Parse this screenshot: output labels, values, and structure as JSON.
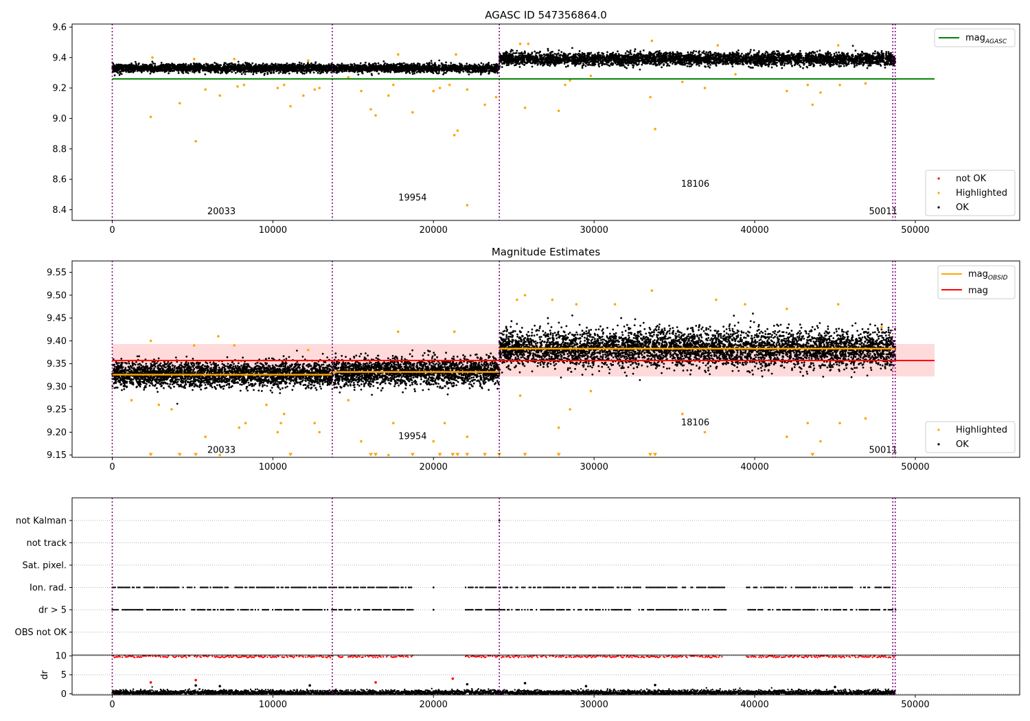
{
  "figure_title": "AGASC ID 547356864.0",
  "colors": {
    "ok": "#000000",
    "highlighted": "#ffa500",
    "not_ok": "#ff0000",
    "mag_agasc": "#008000",
    "mag_obsid": "#ffa500",
    "mag": "#ff0000",
    "band": "#ffd6d6",
    "obsid_boundary": "#800080",
    "grid": "#b0b0b0"
  },
  "chart_data": [
    {
      "type": "scatter",
      "title": "AGASC ID 547356864.0",
      "xlabel": "",
      "ylabel": "",
      "xlim": [
        -2500,
        56500
      ],
      "ylim": [
        8.33,
        9.62
      ],
      "x_ticks": [
        0,
        10000,
        20000,
        30000,
        40000,
        50000
      ],
      "y_ticks": [
        8.4,
        8.6,
        8.8,
        9.0,
        9.2,
        9.4,
        9.6
      ],
      "legends": [
        {
          "position": "top-right",
          "entries": [
            {
              "label_main": "mag",
              "label_sub": "AGASC",
              "color": "#008000",
              "kind": "line"
            }
          ]
        },
        {
          "position": "bottom-right",
          "entries": [
            {
              "label": "not OK",
              "color": "#ff0000",
              "kind": "dot"
            },
            {
              "label": "Highlighted",
              "color": "#ffa500",
              "kind": "dot"
            },
            {
              "label": "OK",
              "color": "#000000",
              "kind": "dot"
            }
          ]
        }
      ],
      "hlines": [
        {
          "name": "mag_AGASC",
          "y": 9.26,
          "x_range": [
            0,
            51200
          ],
          "color": "#008000"
        }
      ],
      "obsid_boundaries": [
        0,
        13700,
        24100,
        48600,
        48750
      ],
      "obsid_labels": [
        {
          "text": "20033",
          "x": 6800,
          "y": 8.37
        },
        {
          "text": "19954",
          "x": 18700,
          "y": 8.46
        },
        {
          "text": "18106",
          "x": 36300,
          "y": 8.55
        },
        {
          "text": "50011",
          "x": 48000,
          "y": 8.37
        }
      ],
      "series": [
        {
          "name": "OK",
          "color": "#000000",
          "segments": [
            {
              "x0": 0,
              "x1": 13700,
              "center": 9.33,
              "spread": 0.03
            },
            {
              "x0": 13700,
              "x1": 24100,
              "center": 9.33,
              "spread": 0.03
            },
            {
              "x0": 24100,
              "x1": 48750,
              "center": 9.39,
              "spread": 0.045
            }
          ]
        },
        {
          "name": "Highlighted",
          "color": "#ffa500",
          "points": [
            [
              2400,
              9.01
            ],
            [
              4200,
              9.1
            ],
            [
              5200,
              8.85
            ],
            [
              5800,
              9.19
            ],
            [
              6700,
              9.15
            ],
            [
              7800,
              9.21
            ],
            [
              8200,
              9.22
            ],
            [
              10300,
              9.2
            ],
            [
              10700,
              9.22
            ],
            [
              11100,
              9.08
            ],
            [
              11900,
              9.15
            ],
            [
              12600,
              9.19
            ],
            [
              12900,
              9.2
            ],
            [
              14700,
              9.27
            ],
            [
              15500,
              9.18
            ],
            [
              16100,
              9.06
            ],
            [
              16400,
              9.02
            ],
            [
              17200,
              9.15
            ],
            [
              17500,
              9.22
            ],
            [
              18700,
              9.04
            ],
            [
              20000,
              9.18
            ],
            [
              20400,
              9.2
            ],
            [
              21000,
              9.22
            ],
            [
              21300,
              8.89
            ],
            [
              21500,
              8.92
            ],
            [
              22100,
              8.43
            ],
            [
              22100,
              9.19
            ],
            [
              23200,
              9.09
            ],
            [
              23900,
              9.14
            ],
            [
              25700,
              9.07
            ],
            [
              27800,
              9.05
            ],
            [
              28200,
              9.22
            ],
            [
              28500,
              9.25
            ],
            [
              29800,
              9.28
            ],
            [
              33500,
              9.14
            ],
            [
              33800,
              8.93
            ],
            [
              35500,
              9.24
            ],
            [
              36900,
              9.2
            ],
            [
              38800,
              9.29
            ],
            [
              42000,
              9.18
            ],
            [
              43300,
              9.22
            ],
            [
              43600,
              9.09
            ],
            [
              44100,
              9.17
            ],
            [
              45300,
              9.22
            ],
            [
              46900,
              9.23
            ],
            [
              2500,
              9.4
            ],
            [
              5100,
              9.39
            ],
            [
              7600,
              9.39
            ],
            [
              12200,
              9.38
            ],
            [
              17800,
              9.42
            ],
            [
              21400,
              9.42
            ],
            [
              25400,
              9.49
            ],
            [
              25900,
              9.49
            ],
            [
              33600,
              9.51
            ],
            [
              37700,
              9.48
            ],
            [
              45200,
              9.48
            ]
          ]
        }
      ]
    },
    {
      "type": "scatter",
      "title": "Magnitude Estimates",
      "xlabel": "",
      "ylabel": "",
      "xlim": [
        -2500,
        56500
      ],
      "ylim": [
        9.145,
        9.575
      ],
      "x_ticks": [
        0,
        10000,
        20000,
        30000,
        40000,
        50000
      ],
      "y_ticks": [
        9.15,
        9.2,
        9.25,
        9.3,
        9.35,
        9.4,
        9.45,
        9.5,
        9.55
      ],
      "legends": [
        {
          "position": "top-right",
          "entries": [
            {
              "label_main": "mag",
              "label_sub": "OBSID",
              "color": "#ffa500",
              "kind": "line"
            },
            {
              "label": "mag",
              "color": "#ff0000",
              "kind": "line"
            }
          ]
        },
        {
          "position": "bottom-right",
          "entries": [
            {
              "label": "Highlighted",
              "color": "#ffa500",
              "kind": "dot"
            },
            {
              "label": "OK",
              "color": "#000000",
              "kind": "dot"
            }
          ]
        }
      ],
      "band": {
        "y0": 9.322,
        "y1": 9.393,
        "x_range": [
          0,
          51200
        ]
      },
      "hlines": [
        {
          "name": "mag",
          "y": 9.357,
          "x_range": [
            0,
            51200
          ],
          "color": "#ff0000"
        }
      ],
      "obsid_means": [
        {
          "x0": 0,
          "x1": 13700,
          "y": 9.326
        },
        {
          "x0": 13700,
          "x1": 24100,
          "y": 9.332
        },
        {
          "x0": 24100,
          "x1": 48750,
          "y": 9.383
        }
      ],
      "obsid_boundaries": [
        0,
        13700,
        24100,
        48600,
        48750
      ],
      "obsid_labels": [
        {
          "text": "20033",
          "x": 6800,
          "y": 9.155
        },
        {
          "text": "19954",
          "x": 18700,
          "y": 9.185
        },
        {
          "text": "18106",
          "x": 36300,
          "y": 9.215
        },
        {
          "text": "50011",
          "x": 48000,
          "y": 9.155
        }
      ],
      "series": [
        {
          "name": "OK",
          "color": "#000000",
          "segments": [
            {
              "x0": 0,
              "x1": 13700,
              "center": 9.327,
              "spread": 0.03
            },
            {
              "x0": 13700,
              "x1": 24100,
              "center": 9.332,
              "spread": 0.033
            },
            {
              "x0": 24100,
              "x1": 48750,
              "center": 9.383,
              "spread": 0.045
            }
          ]
        },
        {
          "name": "Highlighted",
          "color": "#ffa500",
          "points": [
            [
              1200,
              9.27
            ],
            [
              2900,
              9.26
            ],
            [
              3700,
              9.25
            ],
            [
              5800,
              9.19
            ],
            [
              6700,
              9.15
            ],
            [
              7900,
              9.21
            ],
            [
              8300,
              9.22
            ],
            [
              9600,
              9.26
            ],
            [
              10300,
              9.2
            ],
            [
              10700,
              9.24
            ],
            [
              10500,
              9.22
            ],
            [
              12600,
              9.22
            ],
            [
              12900,
              9.2
            ],
            [
              14700,
              9.27
            ],
            [
              15500,
              9.18
            ],
            [
              17200,
              9.15
            ],
            [
              17500,
              9.22
            ],
            [
              20000,
              9.18
            ],
            [
              20700,
              9.22
            ],
            [
              22100,
              9.19
            ],
            [
              25400,
              9.28
            ],
            [
              27800,
              9.21
            ],
            [
              28500,
              9.25
            ],
            [
              29800,
              9.29
            ],
            [
              35500,
              9.24
            ],
            [
              36900,
              9.2
            ],
            [
              42000,
              9.19
            ],
            [
              43300,
              9.22
            ],
            [
              44100,
              9.18
            ],
            [
              45300,
              9.22
            ],
            [
              46900,
              9.23
            ],
            [
              2400,
              9.4
            ],
            [
              5100,
              9.39
            ],
            [
              6600,
              9.41
            ],
            [
              7600,
              9.39
            ],
            [
              12200,
              9.38
            ],
            [
              17800,
              9.42
            ],
            [
              21300,
              9.42
            ],
            [
              25200,
              9.49
            ],
            [
              25700,
              9.5
            ],
            [
              27400,
              9.49
            ],
            [
              28900,
              9.48
            ],
            [
              31300,
              9.48
            ],
            [
              33600,
              9.51
            ],
            [
              37600,
              9.49
            ],
            [
              39400,
              9.48
            ],
            [
              42000,
              9.47
            ],
            [
              45200,
              9.48
            ],
            [
              47900,
              9.43
            ]
          ]
        },
        {
          "name": "Highlighted (below range)",
          "color": "#ffa500",
          "marker": "triangle-down",
          "points": [
            [
              2400,
              9.15
            ],
            [
              4200,
              9.15
            ],
            [
              5200,
              9.15
            ],
            [
              11100,
              9.15
            ],
            [
              16100,
              9.15
            ],
            [
              16400,
              9.15
            ],
            [
              18700,
              9.15
            ],
            [
              20400,
              9.15
            ],
            [
              21200,
              9.15
            ],
            [
              21500,
              9.15
            ],
            [
              22100,
              9.15
            ],
            [
              23200,
              9.15
            ],
            [
              24100,
              9.15
            ],
            [
              25700,
              9.15
            ],
            [
              27800,
              9.15
            ],
            [
              33500,
              9.15
            ],
            [
              33800,
              9.15
            ],
            [
              43600,
              9.15
            ]
          ]
        }
      ]
    },
    {
      "type": "scatter",
      "title": "",
      "xlabel": "",
      "ylabel": "",
      "xlim": [
        -2500,
        56500
      ],
      "categories": [
        "not Kalman",
        "not track",
        "Sat. pixel.",
        "Ion. rad.",
        "dr > 5",
        "OBS not OK"
      ],
      "flag_series": [
        {
          "category": "Ion. rad.",
          "x_ranges": [
            [
              0,
              18800
            ],
            [
              22000,
              38200
            ],
            [
              39500,
              48800
            ]
          ],
          "color": "#000000"
        },
        {
          "category": "dr > 5",
          "x_ranges": [
            [
              0,
              18800
            ],
            [
              22000,
              38200
            ],
            [
              39500,
              48800
            ]
          ],
          "color": "#000000"
        }
      ],
      "isolated_points": [
        {
          "category": "not Kalman",
          "x": 24100
        },
        {
          "category": "Ion. rad.",
          "x": 20000
        },
        {
          "category": "dr > 5",
          "x": 20000
        }
      ],
      "obsid_boundaries": [
        0,
        13700,
        24100,
        48600,
        48750
      ]
    },
    {
      "type": "scatter",
      "title": "",
      "xlabel": "",
      "ylabel": "dr",
      "xlim": [
        -2500,
        56500
      ],
      "ylim": [
        -0.3,
        10.2
      ],
      "y_ticks": [
        0,
        5,
        10
      ],
      "x_ticks": [
        0,
        10000,
        20000,
        30000,
        40000,
        50000
      ],
      "series": [
        {
          "name": "dr OK",
          "color": "#000000",
          "segments": [
            {
              "x0": 0,
              "x1": 48750,
              "center": 0.3,
              "spread": 0.35
            }
          ]
        },
        {
          "name": "not OK at top",
          "color": "#ff0000",
          "x_ranges": [
            [
              0,
              18800
            ],
            [
              22000,
              38200
            ],
            [
              39500,
              48800
            ]
          ],
          "y": 9.8
        },
        {
          "name": "not OK scattered",
          "color": "#ff0000",
          "points": [
            [
              2400,
              3.0
            ],
            [
              5200,
              3.6
            ],
            [
              16400,
              3.0
            ],
            [
              21200,
              4.0
            ]
          ]
        },
        {
          "name": "OK scattered",
          "color": "#000000",
          "points": [
            [
              5200,
              2.2
            ],
            [
              6700,
              2.0
            ],
            [
              12300,
              2.2
            ],
            [
              22100,
              2.5
            ],
            [
              25700,
              2.8
            ],
            [
              29500,
              2.0
            ],
            [
              33800,
              2.3
            ],
            [
              45000,
              1.8
            ]
          ]
        }
      ],
      "obsid_boundaries": [
        0,
        13700,
        24100,
        48600,
        48750
      ]
    }
  ]
}
